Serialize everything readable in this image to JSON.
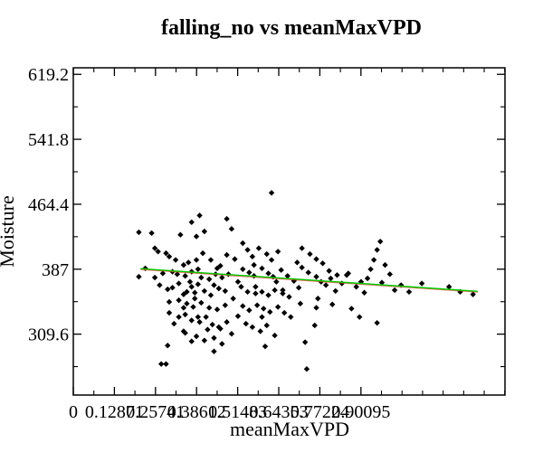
{
  "chart_data": {
    "type": "scatter",
    "title": "falling_no vs meanMaxVPD",
    "xlabel": "meanMaxVPD",
    "ylabel": "Moisture",
    "xlim": [
      0,
      2.7
    ],
    "ylim": [
      237,
      627
    ],
    "x_ticks": [
      {
        "value": 0,
        "label": "0"
      },
      {
        "value": 0.257,
        "label": "0.12871"
      },
      {
        "value": 0.514,
        "label": "0.25741"
      },
      {
        "value": 0.771,
        "label": "0.38612"
      },
      {
        "value": 1.028,
        "label": "0.51483"
      },
      {
        "value": 1.285,
        "label": "0.64353"
      },
      {
        "value": 1.542,
        "label": "0.77224"
      },
      {
        "value": 1.799,
        "label": "0.90095"
      }
    ],
    "y_ticks": [
      {
        "value": 309.6,
        "label": "309.6"
      },
      {
        "value": 387,
        "label": "387"
      },
      {
        "value": 464.4,
        "label": "464.4"
      },
      {
        "value": 541.8,
        "label": "541.8"
      },
      {
        "value": 619.2,
        "label": "619.2"
      }
    ],
    "grid": false,
    "colors": {
      "points": "#000000",
      "trend_line": "#00cc00",
      "trend_line_overlay": "#ff3333",
      "axes": "#000000",
      "background": "#ffffff"
    },
    "series": [
      {
        "values": [
          [
            0.59,
            296
          ],
          [
            0.55,
            274
          ],
          [
            0.58,
            274
          ],
          [
            0.69,
            313
          ],
          [
            0.74,
            301
          ],
          [
            0.76,
            359
          ],
          [
            0.78,
            330
          ],
          [
            1.24,
            478
          ],
          [
            0.91,
            318
          ],
          [
            1.14,
            358
          ],
          [
            1.18,
            330
          ],
          [
            1.31,
            362
          ],
          [
            1.42,
            346
          ],
          [
            1.45,
            300
          ],
          [
            1.46,
            268
          ],
          [
            1.52,
            341
          ],
          [
            1.71,
            380
          ],
          [
            1.93,
            371
          ],
          [
            0.96,
            447
          ],
          [
            0.99,
            435
          ],
          [
            0.79,
            451
          ],
          [
            0.74,
            443
          ],
          [
            0.77,
            426
          ],
          [
            0.82,
            432
          ],
          [
            0.67,
            428
          ],
          [
            0.49,
            430
          ],
          [
            0.41,
            431
          ],
          [
            0.53,
            408
          ],
          [
            0.51,
            412
          ],
          [
            0.58,
            406
          ],
          [
            0.6,
            402
          ],
          [
            0.64,
            398
          ],
          [
            0.69,
            392
          ],
          [
            0.45,
            388
          ],
          [
            0.41,
            378
          ],
          [
            0.51,
            377
          ],
          [
            0.56,
            382
          ],
          [
            0.62,
            384
          ],
          [
            0.65,
            381
          ],
          [
            0.7,
            379
          ],
          [
            0.74,
            384
          ],
          [
            0.78,
            387
          ],
          [
            0.8,
            377
          ],
          [
            0.85,
            375
          ],
          [
            0.89,
            381
          ],
          [
            0.93,
            377
          ],
          [
            0.97,
            381
          ],
          [
            0.54,
            368
          ],
          [
            0.59,
            363
          ],
          [
            0.62,
            365
          ],
          [
            0.66,
            370
          ],
          [
            0.71,
            360
          ],
          [
            0.74,
            366
          ],
          [
            0.78,
            369
          ],
          [
            0.82,
            361
          ],
          [
            0.86,
            356
          ],
          [
            0.91,
            364
          ],
          [
            0.95,
            361
          ],
          [
            1.0,
            352
          ],
          [
            0.6,
            348
          ],
          [
            0.66,
            350
          ],
          [
            0.71,
            346
          ],
          [
            0.75,
            342
          ],
          [
            0.8,
            347
          ],
          [
            0.85,
            341
          ],
          [
            0.9,
            339
          ],
          [
            0.95,
            344
          ],
          [
            0.6,
            335
          ],
          [
            0.66,
            330
          ],
          [
            0.7,
            333
          ],
          [
            0.74,
            326
          ],
          [
            0.79,
            324
          ],
          [
            0.83,
            330
          ],
          [
            0.87,
            321
          ],
          [
            0.92,
            316
          ],
          [
            0.96,
            324
          ],
          [
            0.7,
            311
          ],
          [
            0.77,
            307
          ],
          [
            0.82,
            302
          ],
          [
            0.88,
            305
          ],
          [
            0.93,
            298
          ],
          [
            1.06,
            418
          ],
          [
            1.09,
            410
          ],
          [
            1.12,
            402
          ],
          [
            1.16,
            412
          ],
          [
            1.21,
            405
          ],
          [
            1.24,
            398
          ],
          [
            1.28,
            408
          ],
          [
            1.06,
            387
          ],
          [
            1.1,
            383
          ],
          [
            1.13,
            379
          ],
          [
            1.18,
            388
          ],
          [
            1.22,
            382
          ],
          [
            1.25,
            378
          ],
          [
            1.3,
            386
          ],
          [
            1.34,
            379
          ],
          [
            1.38,
            373
          ],
          [
            1.05,
            366
          ],
          [
            1.09,
            360
          ],
          [
            1.14,
            366
          ],
          [
            1.18,
            360
          ],
          [
            1.22,
            356
          ],
          [
            1.26,
            362
          ],
          [
            1.31,
            358
          ],
          [
            1.35,
            354
          ],
          [
            1.06,
            343
          ],
          [
            1.1,
            338
          ],
          [
            1.15,
            344
          ],
          [
            1.19,
            340
          ],
          [
            1.23,
            336
          ],
          [
            1.28,
            342
          ],
          [
            1.32,
            335
          ],
          [
            1.08,
            322
          ],
          [
            1.12,
            318
          ],
          [
            1.17,
            313
          ],
          [
            1.21,
            320
          ],
          [
            1.26,
            308
          ],
          [
            1.4,
            395
          ],
          [
            1.43,
            389
          ],
          [
            1.47,
            383
          ],
          [
            1.52,
            378
          ],
          [
            1.55,
            372
          ],
          [
            1.58,
            368
          ],
          [
            1.61,
            376
          ],
          [
            1.64,
            361
          ],
          [
            1.43,
            412
          ],
          [
            1.48,
            405
          ],
          [
            1.52,
            399
          ],
          [
            1.56,
            394
          ],
          [
            1.6,
            385
          ],
          [
            1.65,
            380
          ],
          [
            1.68,
            370
          ],
          [
            1.72,
            382
          ],
          [
            1.77,
            366
          ],
          [
            1.8,
            372
          ],
          [
            1.82,
            359
          ],
          [
            1.84,
            376
          ],
          [
            1.86,
            387
          ],
          [
            1.88,
            398
          ],
          [
            1.9,
            410
          ],
          [
            1.92,
            420
          ],
          [
            1.95,
            392
          ],
          [
            1.98,
            381
          ],
          [
            2.01,
            362
          ],
          [
            2.05,
            368
          ],
          [
            2.1,
            360
          ],
          [
            2.18,
            370
          ],
          [
            2.35,
            366
          ],
          [
            2.42,
            360
          ],
          [
            2.5,
            357
          ],
          [
            0.72,
            395
          ],
          [
            0.81,
            406
          ],
          [
            0.86,
            398
          ],
          [
            0.92,
            391
          ],
          [
            0.96,
            404
          ],
          [
            1.01,
            399
          ],
          [
            0.63,
            322
          ],
          [
            0.69,
            341
          ],
          [
            0.76,
            352
          ],
          [
            0.84,
            315
          ],
          [
            0.88,
            289
          ],
          [
            0.99,
            310
          ],
          [
            1.03,
            331
          ],
          [
            1.2,
            295
          ],
          [
            1.36,
            330
          ],
          [
            1.51,
            320
          ],
          [
            1.62,
            345
          ],
          [
            1.74,
            340
          ],
          [
            1.79,
            330
          ],
          [
            1.9,
            323
          ],
          [
            0.69,
            357
          ],
          [
            0.73,
            372
          ],
          [
            0.88,
            368
          ],
          [
            0.9,
            388
          ],
          [
            0.77,
            398
          ],
          [
            1.03,
            372
          ],
          [
            1.13,
            392
          ],
          [
            1.27,
            372
          ],
          [
            1.41,
            365
          ],
          [
            1.53,
            352
          ]
        ]
      },
      {
        "values": [
          [
            0.42,
            387.5
          ],
          [
            2.53,
            360.5
          ]
        ]
      }
    ]
  }
}
